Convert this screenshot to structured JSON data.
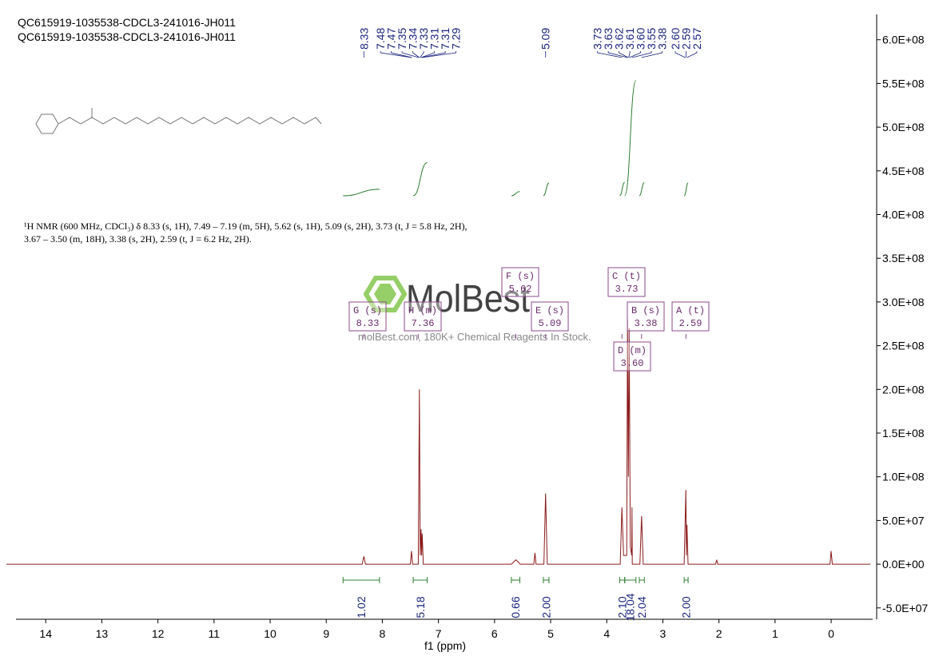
{
  "chart_data": {
    "type": "line",
    "title_lines": [
      "QC615919-1035538-CDCL3-241016-JH011",
      "QC615919-1035538-CDCL3-241016-JH011"
    ],
    "description": "¹H NMR (600 MHz, CDCl₃) δ 8.33 (s, 1H), 7.49 – 7.19 (m, 5H), 5.62 (s, 1H), 5.09 (s, 2H), 3.73 (t, J = 5.8 Hz, 2H), 3.67 – 3.50 (m, 18H), 3.38 (s, 2H), 2.59 (t, J = 6.2 Hz, 2H).",
    "watermark": "MolBest",
    "watermark_subtitle": "molBest.com, 180K+ Chemical Reagents In Stock.",
    "xlabel": "f1 (ppm)",
    "color": "#8b1a1a",
    "x": [
      14.7,
      8.36,
      8.33,
      8.3,
      7.5,
      7.48,
      7.46,
      7.36,
      7.34,
      7.325,
      7.31,
      7.3,
      7.29,
      7.27,
      5.7,
      5.62,
      5.54,
      5.3,
      5.28,
      5.26,
      5.12,
      5.09,
      5.06,
      3.76,
      3.73,
      3.7,
      3.645,
      3.63,
      3.615,
      3.6,
      3.58,
      3.555,
      3.55,
      3.545,
      3.41,
      3.38,
      3.35,
      2.62,
      2.59,
      2.58,
      2.57,
      2.55,
      2.06,
      2.04,
      2.02,
      0.02,
      0.0,
      -0.02,
      -0.7
    ],
    "values": [
      0,
      0,
      9000000,
      0,
      0,
      15000000,
      0,
      0,
      200000000,
      10000000,
      40000000,
      10000000,
      35000000,
      0,
      0,
      5000000,
      0,
      0,
      13000000,
      0,
      0,
      81000000,
      0,
      0,
      65000000,
      10000000,
      10000000,
      280000000,
      100000000,
      270000000,
      20000000,
      10000000,
      65000000,
      0,
      0,
      55000000,
      0,
      0,
      85000000,
      10000000,
      45000000,
      0,
      0,
      5000000,
      0,
      0,
      15000000,
      0,
      0
    ],
    "xlim": [
      14.53,
      -0.74
    ],
    "xticks": [
      14,
      13,
      12,
      11,
      10,
      9,
      8,
      7,
      6,
      5,
      4,
      3,
      2,
      1,
      0
    ],
    "ylim": [
      -63000000,
      629000000
    ],
    "yticks": [
      {
        "value": -50000000,
        "label": "-5.0E+07"
      },
      {
        "value": 0,
        "label": "0.0E+00"
      },
      {
        "value": 50000000,
        "label": "5.0E+07"
      },
      {
        "value": 100000000,
        "label": "1.0E+08"
      },
      {
        "value": 150000000,
        "label": "1.5E+08"
      },
      {
        "value": 200000000,
        "label": "2.0E+08"
      },
      {
        "value": 250000000,
        "label": "2.5E+08"
      },
      {
        "value": 300000000,
        "label": "3.0E+08"
      },
      {
        "value": 350000000,
        "label": "3.5E+08"
      },
      {
        "value": 400000000,
        "label": "4.0E+08"
      },
      {
        "value": 450000000,
        "label": "4.5E+08"
      },
      {
        "value": 500000000,
        "label": "5.0E+08"
      },
      {
        "value": 550000000,
        "label": "5.5E+08"
      },
      {
        "value": 600000000,
        "label": "6.0E+08"
      }
    ],
    "peak_labels": [
      8.33,
      7.48,
      7.47,
      7.35,
      7.34,
      7.33,
      7.31,
      7.31,
      7.29,
      5.09,
      3.73,
      3.63,
      3.62,
      3.61,
      {
        "value": 3.6,
        "label": "3.60"
      },
      3.55,
      3.38,
      {
        "value": 2.6,
        "label": "2.60"
      },
      2.59,
      2.57
    ],
    "multiplets": [
      {
        "label": "G (s)",
        "shift": 8.33
      },
      {
        "label": "H (m)",
        "shift": 7.36
      },
      {
        "label": "F (s)",
        "shift": 5.62
      },
      {
        "label": "E (s)",
        "shift": 5.09
      },
      {
        "label": "C (t)",
        "shift": 3.73
      },
      {
        "label": "B (s)",
        "shift": 3.38
      },
      {
        "label": "A (t)",
        "shift": 2.59
      },
      {
        "label": "D (m)",
        "shift": {
          "value": 3.6,
          "label": "3.60"
        }
      }
    ],
    "integrals": {
      "values": [
        1.02,
        5.18,
        0.66,
        2,
        2.1,
        18.04,
        2.04,
        2
      ],
      "value_labels": [
        "1.02",
        "5.18",
        "0.66",
        "2.00",
        "2.10",
        "18.04",
        "2.04",
        "2.00"
      ],
      "ranges": [
        [
          8.7,
          8.05
        ],
        [
          7.45,
          7.2
        ],
        [
          5.7,
          5.55
        ],
        [
          5.13,
          5.03
        ],
        [
          3.77,
          3.68
        ],
        [
          3.68,
          3.48
        ],
        [
          3.42,
          3.33
        ],
        [
          2.62,
          2.55
        ]
      ],
      "color": "#2e7d32"
    }
  }
}
